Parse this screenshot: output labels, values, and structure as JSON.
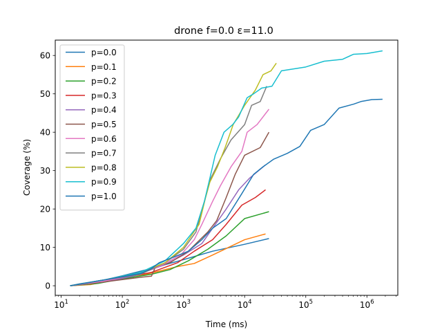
{
  "chart_data": {
    "type": "line",
    "title": "drone f=0.0 ε=11.0",
    "xlabel": "Time (ms)",
    "ylabel": "Coverage (%)",
    "xscale": "log",
    "xlim": [
      8,
      3200000
    ],
    "ylim": [
      -2.5,
      64
    ],
    "x_ticks": [
      {
        "value": 10,
        "base": "10",
        "exp": "1"
      },
      {
        "value": 100,
        "base": "10",
        "exp": "2"
      },
      {
        "value": 1000,
        "base": "10",
        "exp": "3"
      },
      {
        "value": 10000,
        "base": "10",
        "exp": "4"
      },
      {
        "value": 100000,
        "base": "10",
        "exp": "5"
      },
      {
        "value": 1000000,
        "base": "10",
        "exp": "6"
      }
    ],
    "y_ticks": [
      0,
      10,
      20,
      30,
      40,
      50,
      60
    ],
    "grid": false,
    "legend_position": "top-left",
    "series": [
      {
        "name": "p=0.0",
        "color": "#1f77b4",
        "points": [
          [
            14,
            0
          ],
          [
            20,
            0.5
          ],
          [
            50,
            1.5
          ],
          [
            100,
            2.6
          ],
          [
            300,
            4.5
          ],
          [
            1000,
            6.8
          ],
          [
            3000,
            9
          ],
          [
            10000,
            10.8
          ],
          [
            25000,
            12.3
          ]
        ]
      },
      {
        "name": "p=0.1",
        "color": "#ff7f0e",
        "points": [
          [
            14,
            0
          ],
          [
            30,
            0.3
          ],
          [
            60,
            1.2
          ],
          [
            150,
            2.2
          ],
          [
            400,
            3.8
          ],
          [
            800,
            5
          ],
          [
            1500,
            5.8
          ],
          [
            3000,
            8
          ],
          [
            10000,
            12
          ],
          [
            22000,
            13.5
          ]
        ]
      },
      {
        "name": "p=0.2",
        "color": "#2ca02c",
        "points": [
          [
            14,
            0
          ],
          [
            40,
            0.6
          ],
          [
            100,
            1.8
          ],
          [
            300,
            3
          ],
          [
            600,
            4.2
          ],
          [
            1200,
            6.5
          ],
          [
            2500,
            9.5
          ],
          [
            5000,
            13
          ],
          [
            10000,
            17.5
          ],
          [
            25000,
            19.3
          ]
        ]
      },
      {
        "name": "p=0.3",
        "color": "#d62728",
        "points": [
          [
            14,
            0
          ],
          [
            40,
            0.8
          ],
          [
            100,
            2
          ],
          [
            300,
            3.5
          ],
          [
            800,
            6
          ],
          [
            1500,
            9
          ],
          [
            3000,
            12
          ],
          [
            5000,
            16
          ],
          [
            9000,
            21
          ],
          [
            15000,
            23
          ],
          [
            22000,
            25
          ]
        ]
      },
      {
        "name": "p=0.4",
        "color": "#9467bd",
        "points": [
          [
            14,
            0
          ],
          [
            50,
            1
          ],
          [
            150,
            2.5
          ],
          [
            500,
            5.5
          ],
          [
            1000,
            8
          ],
          [
            2000,
            11
          ],
          [
            3000,
            15
          ],
          [
            5000,
            20
          ],
          [
            8000,
            25
          ],
          [
            12000,
            28
          ],
          [
            22000,
            31.5
          ]
        ]
      },
      {
        "name": "p=0.5",
        "color": "#8c564b",
        "points": [
          [
            14,
            0
          ],
          [
            50,
            1
          ],
          [
            200,
            2.2
          ],
          [
            300,
            2.5
          ],
          [
            350,
            5
          ],
          [
            600,
            6
          ],
          [
            1200,
            9
          ],
          [
            2500,
            14
          ],
          [
            3500,
            17
          ],
          [
            5000,
            23
          ],
          [
            7000,
            29
          ],
          [
            10000,
            34
          ],
          [
            18000,
            36
          ],
          [
            25000,
            40
          ]
        ]
      },
      {
        "name": "p=0.6",
        "color": "#e377c2",
        "points": [
          [
            14,
            0
          ],
          [
            50,
            1.2
          ],
          [
            150,
            2.8
          ],
          [
            400,
            5
          ],
          [
            900,
            8
          ],
          [
            1500,
            12
          ],
          [
            2000,
            16
          ],
          [
            3000,
            22
          ],
          [
            4000,
            26
          ],
          [
            6000,
            31
          ],
          [
            9000,
            35
          ],
          [
            11000,
            40
          ],
          [
            16000,
            42
          ],
          [
            25000,
            46
          ]
        ]
      },
      {
        "name": "p=0.7",
        "color": "#7f7f7f",
        "points": [
          [
            14,
            0
          ],
          [
            50,
            1.5
          ],
          [
            200,
            3
          ],
          [
            500,
            6
          ],
          [
            1000,
            9.5
          ],
          [
            1600,
            14
          ],
          [
            2200,
            22
          ],
          [
            2800,
            28
          ],
          [
            4000,
            33
          ],
          [
            6000,
            38
          ],
          [
            10000,
            42
          ],
          [
            13000,
            47
          ],
          [
            18000,
            48
          ],
          [
            23000,
            52
          ]
        ]
      },
      {
        "name": "p=0.8",
        "color": "#bcbd22",
        "points": [
          [
            14,
            0
          ],
          [
            50,
            1.5
          ],
          [
            200,
            3.5
          ],
          [
            500,
            6
          ],
          [
            1000,
            10
          ],
          [
            1800,
            16
          ],
          [
            2300,
            23
          ],
          [
            2700,
            27
          ],
          [
            3600,
            31
          ],
          [
            4800,
            36
          ],
          [
            6500,
            42
          ],
          [
            10000,
            47
          ],
          [
            15000,
            51
          ],
          [
            20000,
            55
          ],
          [
            27000,
            56
          ],
          [
            33000,
            58
          ]
        ]
      },
      {
        "name": "p=0.9",
        "color": "#17becf",
        "points": [
          [
            14,
            0
          ],
          [
            50,
            1.5
          ],
          [
            200,
            3.5
          ],
          [
            500,
            6.5
          ],
          [
            1000,
            11
          ],
          [
            1600,
            15
          ],
          [
            2200,
            22
          ],
          [
            2700,
            28
          ],
          [
            3300,
            34
          ],
          [
            4600,
            40
          ],
          [
            6400,
            42
          ],
          [
            8000,
            44
          ],
          [
            11000,
            49
          ],
          [
            14000,
            50
          ],
          [
            19000,
            51.5
          ],
          [
            28000,
            52
          ],
          [
            40000,
            56
          ],
          [
            100000,
            57
          ],
          [
            200000,
            58.5
          ],
          [
            400000,
            59
          ],
          [
            600000,
            60.3
          ],
          [
            1000000,
            60.5
          ],
          [
            1800000,
            61.2
          ]
        ]
      },
      {
        "name": "p=1.0",
        "color": "#1f77b4",
        "points": [
          [
            14,
            0
          ],
          [
            50,
            1.5
          ],
          [
            200,
            3.2
          ],
          [
            300,
            4.5
          ],
          [
            400,
            6
          ],
          [
            700,
            7.5
          ],
          [
            1200,
            9
          ],
          [
            2000,
            12
          ],
          [
            3000,
            15
          ],
          [
            5000,
            17.5
          ],
          [
            9000,
            24
          ],
          [
            14000,
            29
          ],
          [
            20000,
            31
          ],
          [
            30000,
            33
          ],
          [
            50000,
            34.5
          ],
          [
            80000,
            36.3
          ],
          [
            120000,
            40.5
          ],
          [
            200000,
            42
          ],
          [
            350000,
            46.3
          ],
          [
            600000,
            47.3
          ],
          [
            800000,
            48
          ],
          [
            1200000,
            48.5
          ],
          [
            1800000,
            48.6
          ]
        ]
      }
    ]
  }
}
